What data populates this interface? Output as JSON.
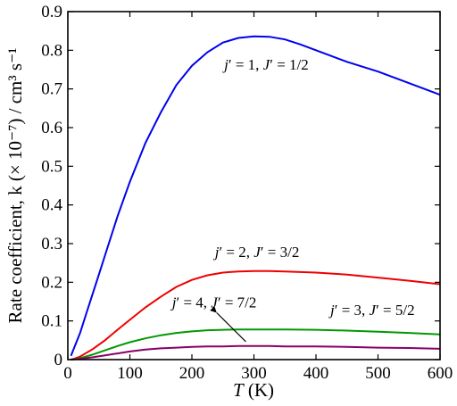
{
  "chart_data": {
    "type": "line",
    "title": "",
    "xlabel": "T (K)",
    "xlabel_italic_part": "T",
    "xlabel_rest": " (K)",
    "ylabel": "Rate coefficient, k (× 10⁻⁷) / cm³ s⁻¹",
    "xlim": [
      0,
      600
    ],
    "ylim": [
      0,
      0.9
    ],
    "x_ticks": [
      0,
      100,
      200,
      300,
      400,
      500,
      600
    ],
    "y_ticks": [
      0,
      0.1,
      0.2,
      0.3,
      0.4,
      0.5,
      0.6,
      0.7,
      0.8,
      0.9
    ],
    "x_tick_labels": [
      "0",
      "100",
      "200",
      "300",
      "400",
      "500",
      "600"
    ],
    "y_tick_labels": [
      "0",
      "0.1",
      "0.2",
      "0.3",
      "0.4",
      "0.5",
      "0.6",
      "0.7",
      "0.8",
      "0.9"
    ],
    "grid": false,
    "series": [
      {
        "name": "j′ = 1, J′ = 1/2",
        "color": "#0000ee",
        "x": [
          5,
          10,
          20,
          30,
          40,
          50,
          60,
          80,
          100,
          125,
          150,
          175,
          200,
          225,
          250,
          275,
          300,
          325,
          350,
          375,
          400,
          450,
          500,
          550,
          600
        ],
        "y": [
          0.01,
          0.03,
          0.07,
          0.12,
          0.17,
          0.22,
          0.27,
          0.37,
          0.46,
          0.56,
          0.64,
          0.71,
          0.76,
          0.795,
          0.82,
          0.832,
          0.836,
          0.835,
          0.828,
          0.815,
          0.8,
          0.77,
          0.745,
          0.715,
          0.685
        ]
      },
      {
        "name": "j′ = 2, J′ = 3/2",
        "color": "#ee0000",
        "x": [
          5,
          10,
          20,
          40,
          60,
          80,
          100,
          125,
          150,
          175,
          200,
          225,
          250,
          275,
          300,
          325,
          350,
          400,
          450,
          500,
          550,
          600
        ],
        "y": [
          0.0,
          0.002,
          0.008,
          0.027,
          0.05,
          0.077,
          0.103,
          0.135,
          0.163,
          0.188,
          0.206,
          0.218,
          0.225,
          0.228,
          0.229,
          0.229,
          0.228,
          0.225,
          0.22,
          0.212,
          0.204,
          0.195
        ]
      },
      {
        "name": "j′ = 3, J′ = 5/2",
        "color": "#009900",
        "x": [
          5,
          10,
          20,
          40,
          60,
          80,
          100,
          125,
          150,
          175,
          200,
          225,
          250,
          275,
          300,
          325,
          350,
          400,
          450,
          500,
          550,
          600
        ],
        "y": [
          0.0,
          0.001,
          0.004,
          0.013,
          0.024,
          0.035,
          0.045,
          0.055,
          0.063,
          0.069,
          0.073,
          0.076,
          0.077,
          0.078,
          0.078,
          0.078,
          0.078,
          0.077,
          0.075,
          0.072,
          0.069,
          0.065
        ]
      },
      {
        "name": "j′ = 4, J′ = 7/2",
        "color": "#880066",
        "x": [
          5,
          10,
          20,
          40,
          60,
          80,
          100,
          125,
          150,
          175,
          200,
          225,
          250,
          275,
          300,
          325,
          350,
          400,
          450,
          500,
          550,
          600
        ],
        "y": [
          0.0,
          0.0005,
          0.002,
          0.006,
          0.011,
          0.016,
          0.021,
          0.026,
          0.029,
          0.031,
          0.033,
          0.034,
          0.034,
          0.035,
          0.035,
          0.035,
          0.034,
          0.034,
          0.033,
          0.031,
          0.03,
          0.028
        ]
      }
    ],
    "annotations": [
      {
        "text": "j′ = 1, J′ = 1/2",
        "series": 0,
        "x": 252,
        "y": 0.75
      },
      {
        "text": "j′ = 2, J′ = 3/2",
        "series": 1,
        "x": 237,
        "y": 0.265
      },
      {
        "text": "j′ = 4, J′ = 7/2",
        "series": 3,
        "x": 168,
        "y": 0.135,
        "arrow_to": [
          287,
          0.037
        ]
      },
      {
        "text": "j′ = 3, J′ = 5/2",
        "series": 2,
        "x": 423,
        "y": 0.115
      }
    ]
  }
}
